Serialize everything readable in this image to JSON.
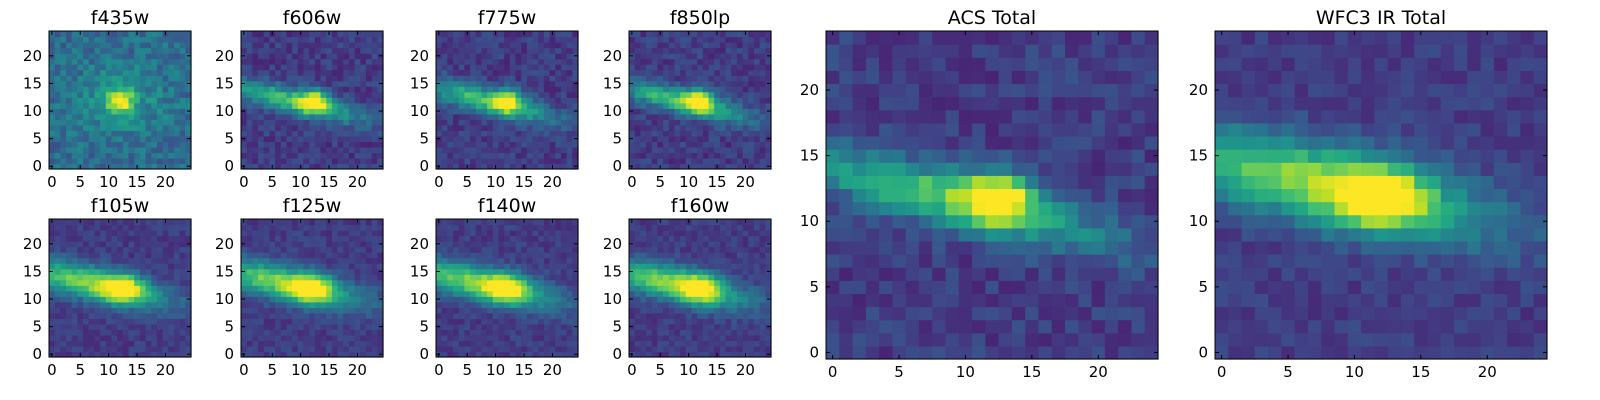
{
  "chart_data": {
    "type": "heatmap",
    "colormap": "viridis",
    "grid": false,
    "legend": "none",
    "panels": [
      {
        "title": "f435w",
        "peak": [
          12,
          12
        ],
        "blob": "compact",
        "xticks": [
          0,
          5,
          10,
          15,
          20
        ],
        "yticks": [
          0,
          5,
          10,
          15,
          20
        ],
        "xlim": [
          0,
          24
        ],
        "ylim": [
          0,
          24
        ]
      },
      {
        "title": "f606w",
        "peak": [
          12.5,
          12
        ],
        "blob": "elongated",
        "xticks": [
          0,
          5,
          10,
          15,
          20
        ],
        "yticks": [
          0,
          5,
          10,
          15,
          20
        ],
        "xlim": [
          0,
          24
        ],
        "ylim": [
          0,
          24
        ]
      },
      {
        "title": "f775w",
        "peak": [
          12,
          12
        ],
        "blob": "elongated",
        "xticks": [
          0,
          5,
          10,
          15,
          20
        ],
        "yticks": [
          0,
          5,
          10,
          15,
          20
        ],
        "xlim": [
          0,
          24
        ],
        "ylim": [
          0,
          24
        ]
      },
      {
        "title": "f850lp",
        "peak": [
          12,
          12
        ],
        "blob": "elongated",
        "xticks": [
          0,
          5,
          10,
          15,
          20
        ],
        "yticks": [
          0,
          5,
          10,
          15,
          20
        ],
        "xlim": [
          0,
          24
        ],
        "ylim": [
          0,
          24
        ]
      },
      {
        "title": "f105w",
        "peak": [
          12.5,
          12
        ],
        "blob": "extended",
        "xticks": [
          0,
          5,
          10,
          15,
          20
        ],
        "yticks": [
          0,
          5,
          10,
          15,
          20
        ],
        "xlim": [
          0,
          24
        ],
        "ylim": [
          0,
          24
        ]
      },
      {
        "title": "f125w",
        "peak": [
          12,
          12
        ],
        "blob": "extended",
        "xticks": [
          0,
          5,
          10,
          15,
          20
        ],
        "yticks": [
          0,
          5,
          10,
          15,
          20
        ],
        "xlim": [
          0,
          24
        ],
        "ylim": [
          0,
          24
        ]
      },
      {
        "title": "f140w",
        "peak": [
          12,
          12
        ],
        "blob": "extended",
        "xticks": [
          0,
          5,
          10,
          15,
          20
        ],
        "yticks": [
          0,
          5,
          10,
          15,
          20
        ],
        "xlim": [
          0,
          24
        ],
        "ylim": [
          0,
          24
        ]
      },
      {
        "title": "f160w",
        "peak": [
          12,
          12
        ],
        "blob": "extended",
        "xticks": [
          0,
          5,
          10,
          15,
          20
        ],
        "yticks": [
          0,
          5,
          10,
          15,
          20
        ],
        "xlim": [
          0,
          24
        ],
        "ylim": [
          0,
          24
        ]
      },
      {
        "title": "ACS Total",
        "peak": [
          12.5,
          12
        ],
        "blob": "elongated",
        "xticks": [
          0,
          5,
          10,
          15,
          20
        ],
        "yticks": [
          0,
          5,
          10,
          15,
          20
        ],
        "xlim": [
          0,
          24
        ],
        "ylim": [
          0,
          24
        ]
      },
      {
        "title": "WFC3 IR Total",
        "peak": [
          12,
          12
        ],
        "blob": "extended",
        "xticks": [
          0,
          5,
          10,
          15,
          20
        ],
        "yticks": [
          0,
          5,
          10,
          15,
          20
        ],
        "xlim": [
          0,
          24
        ],
        "ylim": [
          0,
          24
        ]
      }
    ]
  }
}
